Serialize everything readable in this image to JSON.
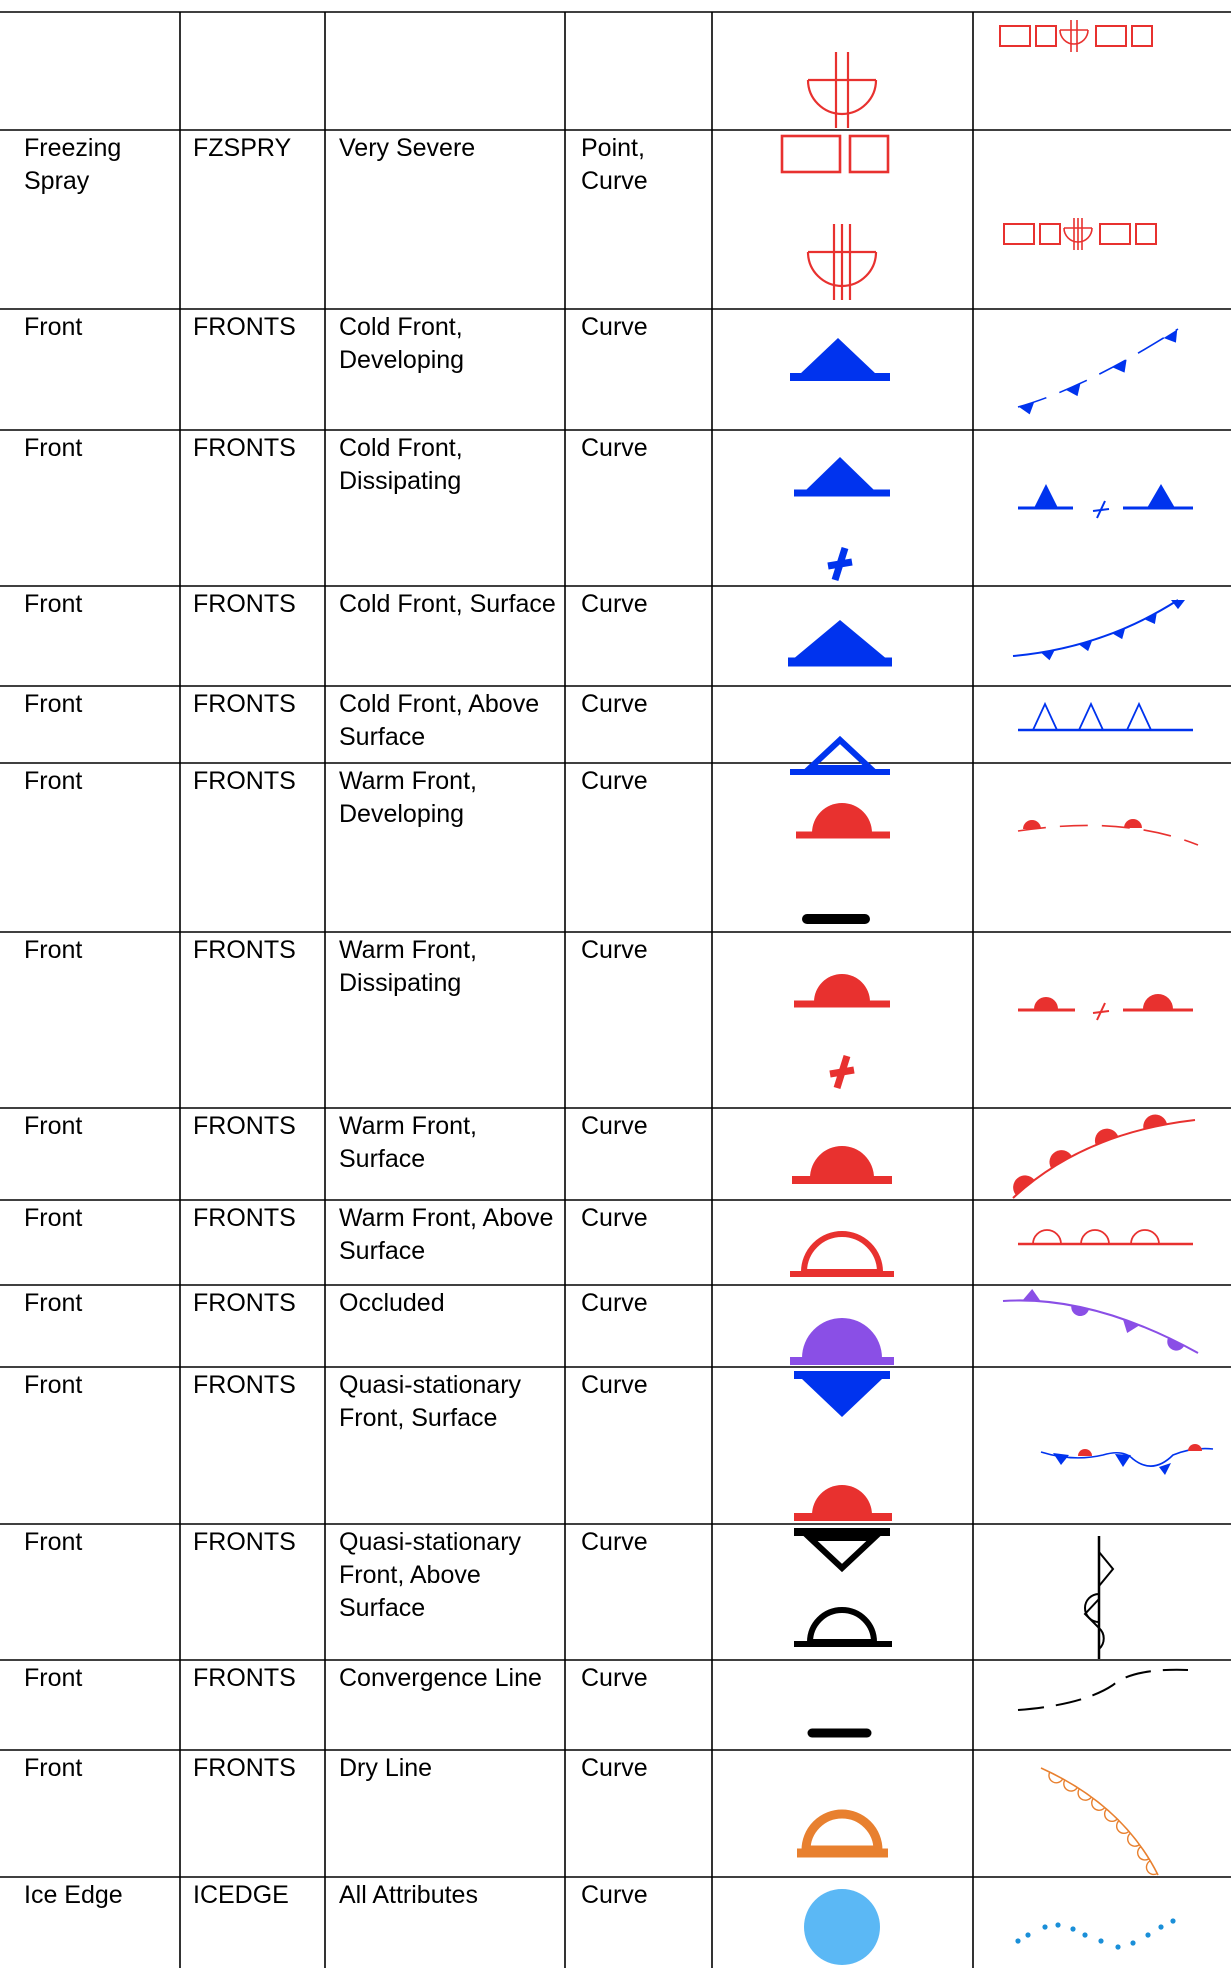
{
  "table": {
    "rows": [
      {
        "feature": "",
        "code": "",
        "attribute": "",
        "geometry": "",
        "point_icon": "freezing-spray-severe-symbol",
        "curve_icon": "freezing-spray-severe-line"
      },
      {
        "feature": "Freezing\nSpray",
        "code": "FZSPRY",
        "attribute": "Very Severe",
        "geometry": "Point,\nCurve",
        "point_icon": "freezing-spray-very-severe-symbol",
        "curve_icon": "freezing-spray-very-severe-line"
      },
      {
        "feature": "Front",
        "code": "FRONTS",
        "attribute": "Cold Front,\nDeveloping",
        "geometry": "Curve",
        "point_icon": "cold-front-developing-symbol",
        "curve_icon": "cold-front-developing-line"
      },
      {
        "feature": "Front",
        "code": "FRONTS",
        "attribute": "Cold Front,\nDissipating",
        "geometry": "Curve",
        "point_icon": "cold-front-dissipating-symbol",
        "curve_icon": "cold-front-dissipating-line"
      },
      {
        "feature": "Front",
        "code": "FRONTS",
        "attribute": "Cold Front, Surface",
        "geometry": "Curve",
        "point_icon": "cold-front-surface-symbol",
        "curve_icon": "cold-front-surface-line"
      },
      {
        "feature": "Front",
        "code": "FRONTS",
        "attribute": "Cold Front, Above\nSurface",
        "geometry": "Curve",
        "point_icon": "cold-front-above-surface-symbol",
        "curve_icon": "cold-front-above-surface-line"
      },
      {
        "feature": "Front",
        "code": "FRONTS",
        "attribute": "Warm Front,\nDeveloping",
        "geometry": "Curve",
        "point_icon": "warm-front-developing-symbol",
        "curve_icon": "warm-front-developing-line"
      },
      {
        "feature": "Front",
        "code": "FRONTS",
        "attribute": "Warm Front,\nDissipating",
        "geometry": "Curve",
        "point_icon": "warm-front-dissipating-symbol",
        "curve_icon": "warm-front-dissipating-line"
      },
      {
        "feature": "Front",
        "code": "FRONTS",
        "attribute": "Warm Front,\nSurface",
        "geometry": "Curve",
        "point_icon": "warm-front-surface-symbol",
        "curve_icon": "warm-front-surface-line"
      },
      {
        "feature": "Front",
        "code": "FRONTS",
        "attribute": "Warm Front, Above\nSurface",
        "geometry": "Curve",
        "point_icon": "warm-front-above-surface-symbol",
        "curve_icon": "warm-front-above-surface-line"
      },
      {
        "feature": "Front",
        "code": "FRONTS",
        "attribute": "Occluded",
        "geometry": "Curve",
        "point_icon": "occluded-front-symbol",
        "curve_icon": "occluded-front-line"
      },
      {
        "feature": "Front",
        "code": "FRONTS",
        "attribute": "Quasi-stationary\nFront, Surface",
        "geometry": "Curve",
        "point_icon": "quasi-stationary-front-surface-symbol",
        "curve_icon": "quasi-stationary-front-surface-line"
      },
      {
        "feature": "Front",
        "code": "FRONTS",
        "attribute": "Quasi-stationary\nFront, Above\nSurface",
        "geometry": "Curve",
        "point_icon": "quasi-stationary-front-above-surface-symbol",
        "curve_icon": "quasi-stationary-front-above-surface-line"
      },
      {
        "feature": "Front",
        "code": "FRONTS",
        "attribute": "Convergence Line",
        "geometry": "Curve",
        "point_icon": "convergence-line-symbol",
        "curve_icon": "convergence-line-line"
      },
      {
        "feature": "Front",
        "code": "FRONTS",
        "attribute": "Dry Line",
        "geometry": "Curve",
        "point_icon": "dry-line-symbol",
        "curve_icon": "dry-line-line"
      },
      {
        "feature": "Ice Edge",
        "code": "ICEDGE",
        "attribute": "All Attributes",
        "geometry": "Curve",
        "point_icon": "ice-edge-symbol",
        "curve_icon": "ice-edge-line"
      }
    ]
  },
  "colors": {
    "grid": "#000000",
    "red": "#e8312f",
    "blue": "#0033ee",
    "purple": "#8a4fe6",
    "orange": "#e8802f",
    "black": "#000000",
    "ice": "#5bb8f5",
    "ice_dots": "#1a8fd8"
  }
}
